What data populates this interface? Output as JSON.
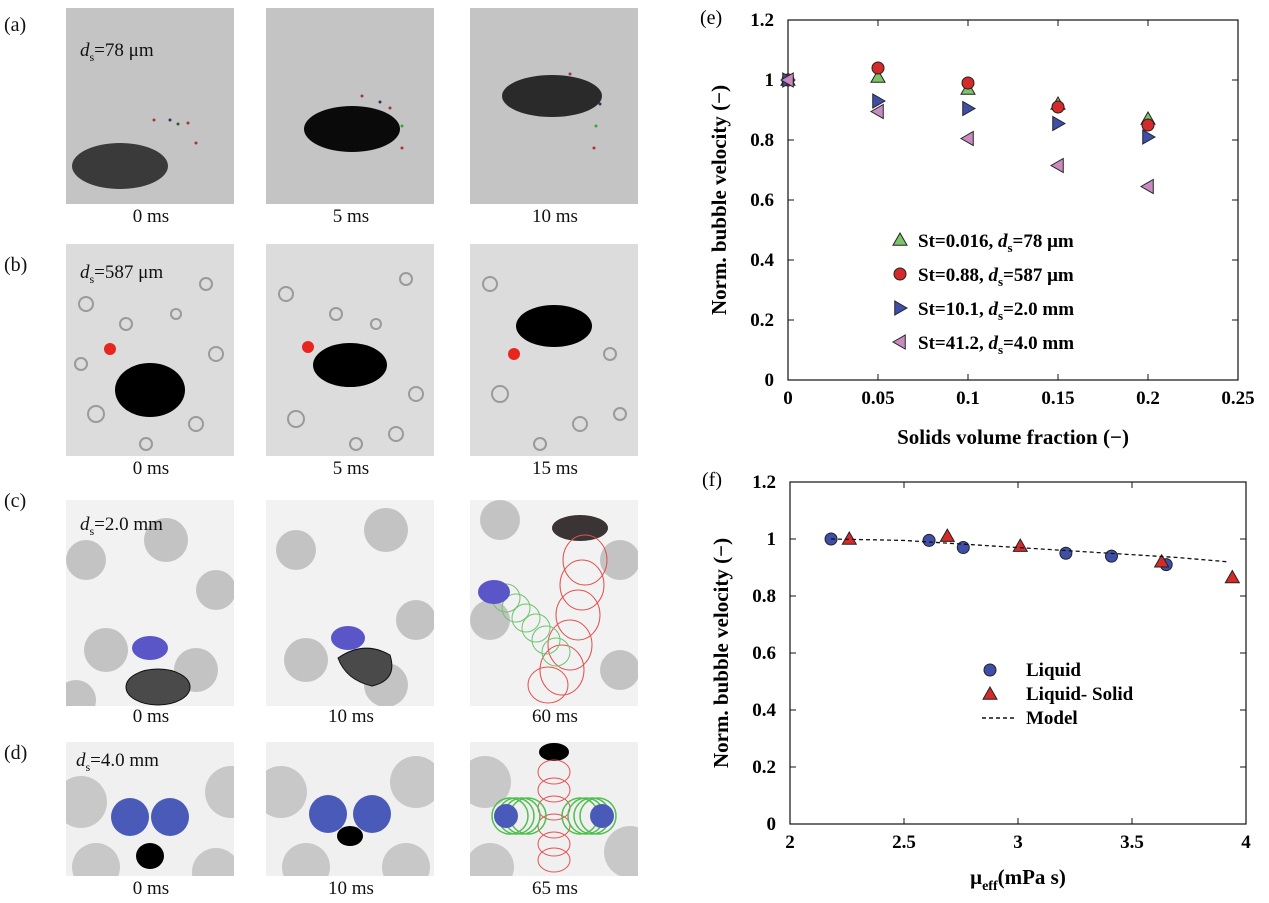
{
  "panels": {
    "a": {
      "letter": "(a)",
      "label_d": "d",
      "label_sub": "s",
      "label_val": "=78 μm",
      "times": [
        "0 ms",
        "5 ms",
        "10 ms"
      ]
    },
    "b": {
      "letter": "(b)",
      "label_d": "d",
      "label_sub": "s",
      "label_val": "=587 μm",
      "times": [
        "0 ms",
        "5 ms",
        "15 ms"
      ]
    },
    "c": {
      "letter": "(c)",
      "label_d": "d",
      "label_sub": "s",
      "label_val": "=2.0 mm",
      "times": [
        "0 ms",
        "10 ms",
        "60 ms"
      ]
    },
    "d": {
      "letter": "(d)",
      "label_d": "d",
      "label_sub": "s",
      "label_val": "=4.0 mm",
      "times": [
        "0 ms",
        "10 ms",
        "65 ms"
      ]
    }
  },
  "chart_data": [
    {
      "panel": "(e)",
      "type": "scatter",
      "xlabel": "Solids volume fraction (−)",
      "ylabel": "Norm. bubble velocity (−)",
      "xlim": [
        0,
        0.25
      ],
      "ylim": [
        0,
        1.2
      ],
      "xticks": [
        "0",
        "0.05",
        "0.1",
        "0.15",
        "0.2",
        "0.25"
      ],
      "yticks": [
        "0",
        "0.2",
        "0.4",
        "0.6",
        "0.8",
        "1",
        "1.2"
      ],
      "legend_position": "lower-left",
      "series": [
        {
          "name": "St=0.016, ds=78 μm",
          "label_main": "St=0.016, ",
          "label_d": "d",
          "label_sub": "s",
          "label_val": "=78 μm",
          "marker": "triangle-up",
          "color": "#7dc36a",
          "x": [
            0,
            0.05,
            0.1,
            0.15,
            0.2
          ],
          "y": [
            1.0,
            1.01,
            0.97,
            0.92,
            0.87
          ]
        },
        {
          "name": "St=0.88, ds=587 μm",
          "label_main": "St=0.88, ",
          "label_d": "d",
          "label_sub": "s",
          "label_val": "=587 μm",
          "marker": "circle",
          "color": "#d42a2a",
          "x": [
            0,
            0.05,
            0.1,
            0.15,
            0.2
          ],
          "y": [
            1.0,
            1.04,
            0.99,
            0.91,
            0.85
          ]
        },
        {
          "name": "St=10.1, ds=2.0 mm",
          "label_main": "St=10.1, ",
          "label_d": "d",
          "label_sub": "s",
          "label_val": "=2.0 mm",
          "marker": "triangle-right",
          "color": "#3f4fa8",
          "x": [
            0,
            0.05,
            0.1,
            0.15,
            0.2
          ],
          "y": [
            1.0,
            0.93,
            0.905,
            0.855,
            0.81
          ]
        },
        {
          "name": "St=41.2, ds=4.0 mm",
          "label_main": "St=41.2, ",
          "label_d": "d",
          "label_sub": "s",
          "label_val": "=4.0 mm",
          "marker": "triangle-left",
          "color": "#c98ac2",
          "x": [
            0,
            0.05,
            0.1,
            0.15,
            0.2
          ],
          "y": [
            1.0,
            0.895,
            0.805,
            0.715,
            0.645
          ]
        }
      ]
    },
    {
      "panel": "(f)",
      "type": "scatter",
      "xlabel_main": "μ",
      "xlabel_sub": "eff",
      "xlabel_rest": "(mPa s)",
      "ylabel": "Norm. bubble velocity (−)",
      "xlim": [
        2,
        4
      ],
      "ylim": [
        0,
        1.2
      ],
      "xticks": [
        "2",
        "2.5",
        "3",
        "3.5",
        "4"
      ],
      "yticks": [
        "0",
        "0.2",
        "0.4",
        "0.6",
        "0.8",
        "1",
        "1.2"
      ],
      "legend_position": "center",
      "series": [
        {
          "name": "Liquid",
          "marker": "circle",
          "color": "#3f4fa8",
          "x": [
            2.18,
            2.61,
            2.76,
            3.21,
            3.41,
            3.65
          ],
          "y": [
            1.0,
            0.995,
            0.97,
            0.95,
            0.94,
            0.91
          ]
        },
        {
          "name": "Liquid- Solid",
          "marker": "triangle-up",
          "color": "#d42a2a",
          "x": [
            2.26,
            2.69,
            3.01,
            3.63,
            3.94
          ],
          "y": [
            1.0,
            1.01,
            0.975,
            0.92,
            0.865
          ]
        },
        {
          "name": "Model",
          "marker": "dashed-line",
          "color": "#111111",
          "x": [
            2.18,
            2.5,
            2.8,
            3.1,
            3.4,
            3.7,
            3.92
          ],
          "y": [
            1.0,
            0.995,
            0.98,
            0.965,
            0.95,
            0.935,
            0.92
          ]
        }
      ]
    }
  ]
}
